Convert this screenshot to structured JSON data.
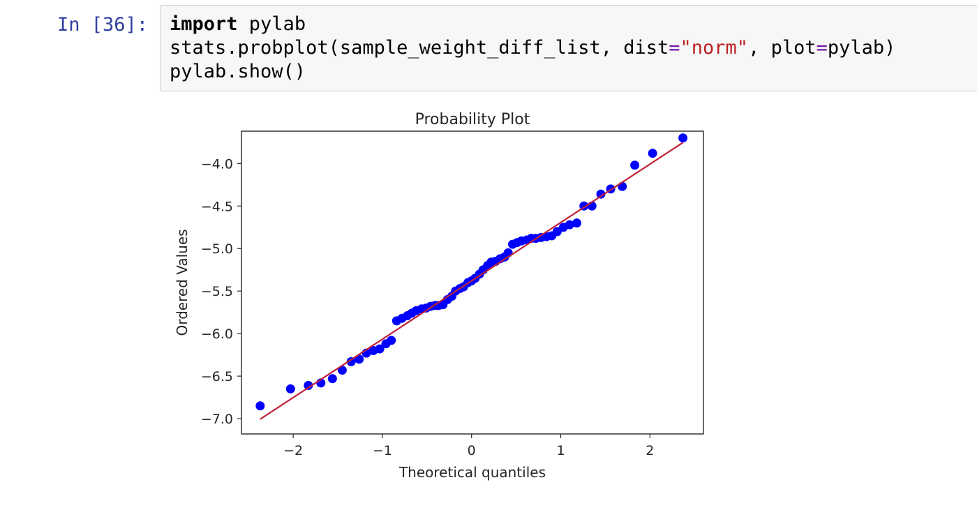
{
  "cell": {
    "prompt": "In [36]:",
    "code": {
      "line1": {
        "kw": "import",
        "rest": " pylab"
      },
      "line2": {
        "pre": "stats.probplot(sample_weight_diff_list, dist",
        "eq1": "=",
        "str": "\"norm\"",
        "mid": ", plot",
        "eq2": "=",
        "post": "pylab)"
      },
      "line3": "pylab.show()"
    }
  },
  "colors": {
    "points": "#0000ff",
    "fit_line": "#c02039",
    "axes": "#262626",
    "prompt": "#303f9f",
    "string": "#ba2121",
    "operator": "#7216ab"
  },
  "chart_data": {
    "type": "scatter",
    "title": "Probability Plot",
    "xlabel": "Theoretical quantiles",
    "ylabel": "Ordered Values",
    "xlim": [
      -2.58,
      2.6
    ],
    "ylim": [
      -7.18,
      -3.62
    ],
    "xticks": [
      -2,
      -1,
      0,
      1,
      2
    ],
    "xtick_labels": [
      "−2",
      "−1",
      "0",
      "1",
      "2"
    ],
    "yticks": [
      -7.0,
      -6.5,
      -6.0,
      -5.5,
      -5.0,
      -4.5,
      -4.0
    ],
    "ytick_labels": [
      "−7.0",
      "−6.5",
      "−6.0",
      "−5.5",
      "−5.0",
      "−4.5",
      "−4.0"
    ],
    "grid": false,
    "series": [
      {
        "x": [
          -2.37,
          -2.03,
          -1.83,
          -1.69,
          -1.56,
          -1.45,
          -1.35,
          -1.26,
          -1.18,
          -1.1,
          -1.03,
          -0.96,
          -0.9,
          -0.84,
          -0.78,
          -0.72,
          -0.67,
          -0.62,
          -0.56,
          -0.51,
          -0.46,
          -0.41,
          -0.37,
          -0.32,
          -0.27,
          -0.22,
          -0.18,
          -0.13,
          -0.09,
          -0.04,
          0.0,
          0.04,
          0.09,
          0.13,
          0.18,
          0.22,
          0.27,
          0.32,
          0.37,
          0.41,
          0.46,
          0.51,
          0.56,
          0.62,
          0.67,
          0.72,
          0.78,
          0.84,
          0.9,
          0.96,
          1.03,
          1.1,
          1.18,
          1.26,
          1.35,
          1.45,
          1.56,
          1.69,
          1.83,
          2.03,
          2.37
        ],
        "y": [
          -6.85,
          -6.65,
          -6.61,
          -6.58,
          -6.53,
          -6.43,
          -6.33,
          -6.3,
          -6.23,
          -6.2,
          -6.18,
          -6.12,
          -6.08,
          -5.85,
          -5.82,
          -5.79,
          -5.76,
          -5.73,
          -5.71,
          -5.7,
          -5.68,
          -5.67,
          -5.67,
          -5.66,
          -5.6,
          -5.56,
          -5.5,
          -5.47,
          -5.45,
          -5.4,
          -5.38,
          -5.35,
          -5.3,
          -5.25,
          -5.2,
          -5.16,
          -5.15,
          -5.12,
          -5.1,
          -5.05,
          -4.95,
          -4.93,
          -4.91,
          -4.9,
          -4.88,
          -4.88,
          -4.87,
          -4.86,
          -4.85,
          -4.8,
          -4.75,
          -4.72,
          -4.7,
          -4.5,
          -4.5,
          -4.36,
          -4.3,
          -4.27,
          -4.02,
          -3.88,
          -3.7
        ],
        "fit": {
          "slope": 0.686,
          "intercept": -5.38,
          "x_range": [
            -2.37,
            2.37
          ]
        }
      }
    ]
  }
}
